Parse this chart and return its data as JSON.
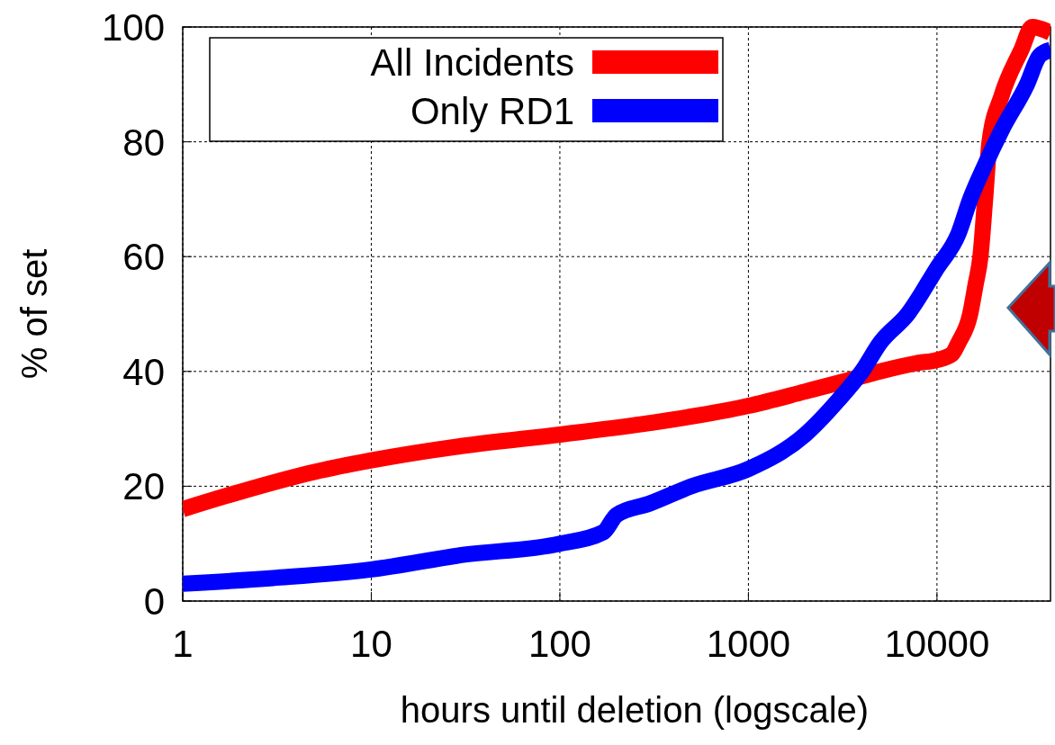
{
  "chart_data": {
    "type": "line",
    "xlabel": "hours until deletion (logscale)",
    "ylabel": "% of set",
    "log": "x",
    "xlim": [
      1,
      40000
    ],
    "xticks": [
      1,
      10,
      100,
      1000,
      10000
    ],
    "ylim": [
      0,
      100
    ],
    "yticks": [
      0,
      20,
      40,
      60,
      80,
      100
    ],
    "grid": true,
    "legend": "top left",
    "line_style": "solid",
    "series": [
      {
        "name": "All Incidents",
        "color": "#ff0000",
        "x": [
          1,
          2,
          5,
          10,
          30,
          100,
          300,
          1000,
          2000,
          3000,
          5000,
          8000,
          10000,
          12000,
          13000,
          15000,
          16000,
          17000,
          18000,
          19000,
          22000,
          28000,
          32000,
          40000
        ],
        "values": [
          16,
          19,
          22.5,
          24.5,
          27,
          29,
          31,
          34,
          36.5,
          38,
          40,
          41.5,
          42,
          43,
          45,
          50,
          55,
          60,
          70,
          80,
          88,
          96,
          100,
          99
        ]
      },
      {
        "name": "Only RD1",
        "color": "#0000ff",
        "x": [
          1,
          3,
          10,
          30,
          100,
          170,
          200,
          300,
          500,
          1000,
          2000,
          3000,
          4000,
          5000,
          7000,
          10000,
          13000,
          15000,
          18000,
          22000,
          30000,
          35000,
          40000
        ],
        "values": [
          3,
          4,
          5.5,
          8,
          10,
          12,
          15,
          17,
          20,
          23,
          29,
          35,
          40,
          45,
          50,
          58,
          64,
          70,
          76,
          82,
          90,
          95,
          96
        ]
      }
    ]
  }
}
